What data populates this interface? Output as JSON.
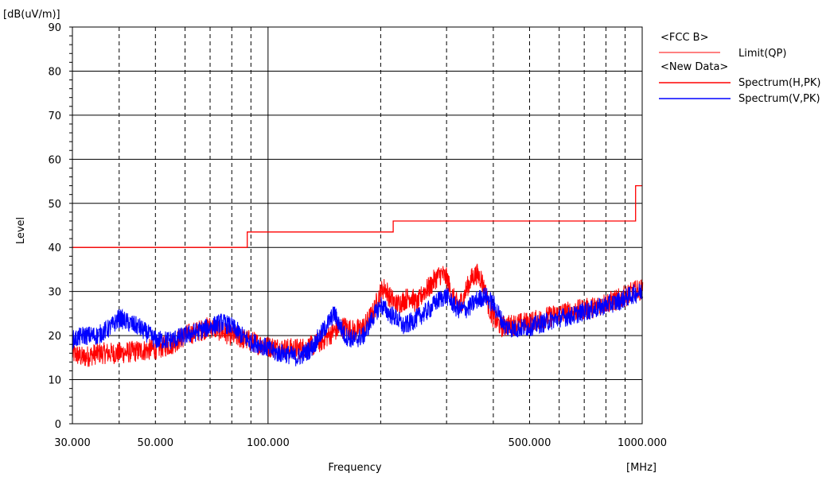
{
  "chart_data": {
    "type": "line",
    "ylabel": "Level",
    "yunit": "[dB(uV/m)]",
    "xlabel": "Frequency",
    "xunit": "[MHz]",
    "x_scale": "log",
    "xlim": [
      30,
      1000
    ],
    "ylim": [
      0,
      90
    ],
    "y_ticks": [
      0,
      10,
      20,
      30,
      40,
      50,
      60,
      70,
      80,
      90
    ],
    "x_major_lines": [
      100
    ],
    "x_minor_lines": [
      40,
      50,
      60,
      70,
      80,
      90,
      200,
      300,
      400,
      500,
      600,
      700,
      800,
      900
    ],
    "x_tick_labels": [
      {
        "value": 30,
        "label": "30.000"
      },
      {
        "value": 50,
        "label": "50.000"
      },
      {
        "value": 100,
        "label": "100.000"
      },
      {
        "value": 500,
        "label": "500.000"
      },
      {
        "value": 1000,
        "label": "1000.000"
      }
    ],
    "grid": true,
    "legend_position": "top-right",
    "legend": [
      {
        "group": "<FCC B>",
        "entries": [
          {
            "name": "Limit(QP)",
            "color": "#ff0000"
          }
        ]
      },
      {
        "group": "<New Data>",
        "entries": [
          {
            "name": "Spectrum(H,PK)",
            "color": "#ff0000"
          },
          {
            "name": "Spectrum(V,PK)",
            "color": "#0000ff"
          }
        ]
      }
    ],
    "series": [
      {
        "name": "Limit(QP)",
        "color": "#ff0000",
        "step": true,
        "x": [
          30,
          88,
          88,
          216,
          216,
          960,
          960,
          1000
        ],
        "y": [
          40,
          40,
          43.5,
          43.5,
          46,
          46,
          54,
          54
        ]
      },
      {
        "name": "Spectrum(H,PK)",
        "color": "#ff0000",
        "noise": 2.5,
        "x": [
          30,
          32,
          35,
          40,
          45,
          50,
          55,
          60,
          65,
          70,
          75,
          80,
          88,
          95,
          100,
          110,
          120,
          130,
          140,
          150,
          160,
          170,
          180,
          190,
          200,
          205,
          210,
          220,
          230,
          240,
          250,
          260,
          270,
          280,
          290,
          300,
          310,
          320,
          330,
          340,
          350,
          360,
          370,
          380,
          390,
          400,
          420,
          450,
          500,
          550,
          600,
          650,
          700,
          750,
          800,
          850,
          900,
          950,
          1000
        ],
        "y": [
          16,
          15,
          16,
          16,
          16.5,
          17,
          18,
          20,
          21,
          22,
          21,
          20,
          19,
          18,
          17.5,
          17,
          17,
          17.5,
          19,
          21,
          22,
          21,
          22,
          25,
          30,
          31,
          29,
          27,
          28,
          29,
          27,
          30,
          31,
          33,
          34,
          33,
          29,
          27,
          28,
          31,
          33,
          34,
          33,
          30,
          26,
          24,
          22,
          22.5,
          23,
          24,
          25,
          25.5,
          26,
          26.5,
          27.5,
          28,
          29,
          30,
          30.5
        ]
      },
      {
        "name": "Spectrum(V,PK)",
        "color": "#0000ff",
        "noise": 2.2,
        "x": [
          30,
          32,
          35,
          38,
          40,
          42,
          45,
          50,
          55,
          60,
          65,
          70,
          75,
          80,
          85,
          88,
          90,
          95,
          100,
          105,
          110,
          115,
          120,
          125,
          130,
          135,
          140,
          145,
          150,
          160,
          170,
          180,
          190,
          200,
          210,
          220,
          230,
          240,
          250,
          260,
          270,
          280,
          290,
          300,
          320,
          340,
          350,
          360,
          380,
          400,
          430,
          460,
          500,
          550,
          600,
          650,
          700,
          750,
          800,
          850,
          900,
          950,
          1000
        ],
        "y": [
          19,
          20,
          20,
          22,
          24,
          23,
          22,
          19,
          19,
          20,
          21,
          22,
          23,
          22,
          20,
          19,
          18.5,
          18,
          17,
          16,
          16,
          15.5,
          15,
          16,
          17,
          19,
          21,
          23,
          25,
          20,
          19,
          20,
          24,
          27,
          25,
          24,
          22,
          23,
          24,
          25,
          26,
          27.5,
          28.5,
          29,
          26,
          26,
          27,
          28,
          29,
          27,
          22,
          21.5,
          22,
          23,
          24,
          24.5,
          25.5,
          26,
          27,
          27.5,
          28.5,
          29.5,
          30
        ]
      }
    ]
  }
}
